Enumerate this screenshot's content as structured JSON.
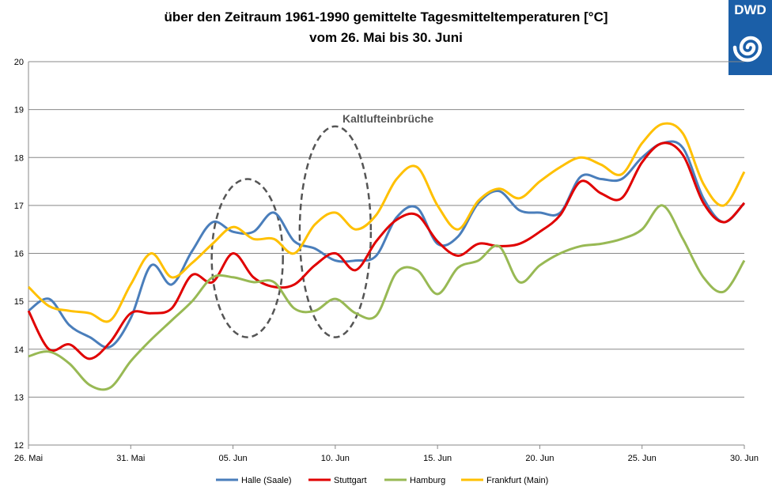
{
  "header": {
    "title_line1": "über den Zeitraum  1961-1990 gemittelte Tagesmitteltemperaturen  [°C]",
    "title_line2": "vom 26. Mai bis 30. Juni",
    "logo_text": "DWD"
  },
  "chart_data": {
    "type": "line",
    "title": "über den Zeitraum  1961-1990 gemittelte Tagesmitteltemperaturen  [°C]",
    "subtitle": "vom 26. Mai bis 30. Juni",
    "ylim": [
      12,
      20
    ],
    "yticks": [
      "12",
      "13",
      "14",
      "15",
      "16",
      "17",
      "18",
      "19",
      "20"
    ],
    "x_tick_labels": [
      "26. Mai",
      "31. Mai",
      "05. Jun",
      "10. Jun",
      "15. Jun",
      "20. Jun",
      "25. Jun",
      "30. Jun"
    ],
    "x": [
      "26. Mai",
      "27. Mai",
      "28. Mai",
      "29. Mai",
      "30. Mai",
      "31. Mai",
      "01. Jun",
      "02. Jun",
      "03. Jun",
      "04. Jun",
      "05. Jun",
      "06. Jun",
      "07. Jun",
      "08. Jun",
      "09. Jun",
      "10. Jun",
      "11. Jun",
      "12. Jun",
      "13. Jun",
      "14. Jun",
      "15. Jun",
      "16. Jun",
      "17. Jun",
      "18. Jun",
      "19. Jun",
      "20. Jun",
      "21. Jun",
      "22. Jun",
      "23. Jun",
      "24. Jun",
      "25. Jun",
      "26. Jun",
      "27. Jun",
      "28. Jun",
      "29. Jun",
      "30. Jun"
    ],
    "grid": "horizontal",
    "legend_position": "bottom",
    "annotation": "Kaltlufteinbrüche",
    "series": [
      {
        "name": "Halle (Saale)",
        "color": "#4a7ebb",
        "values": [
          14.8,
          15.05,
          14.5,
          14.25,
          14.05,
          14.65,
          15.75,
          15.35,
          16.05,
          16.65,
          16.45,
          16.45,
          16.85,
          16.25,
          16.1,
          15.85,
          15.85,
          15.95,
          16.75,
          16.95,
          16.2,
          16.35,
          17.05,
          17.3,
          16.9,
          16.85,
          16.85,
          17.6,
          17.55,
          17.55,
          18.0,
          18.3,
          18.2,
          17.15,
          16.65,
          17.05
        ]
      },
      {
        "name": "Stuttgart",
        "color": "#e00000",
        "values": [
          14.8,
          14.0,
          14.1,
          13.8,
          14.15,
          14.75,
          14.75,
          14.85,
          15.55,
          15.4,
          16.0,
          15.5,
          15.3,
          15.35,
          15.75,
          16.0,
          15.65,
          16.25,
          16.7,
          16.8,
          16.25,
          15.95,
          16.2,
          16.15,
          16.2,
          16.45,
          16.8,
          17.5,
          17.25,
          17.15,
          17.9,
          18.3,
          18.05,
          17.05,
          16.65,
          17.05
        ]
      },
      {
        "name": "Hamburg",
        "color": "#98b954",
        "values": [
          13.85,
          13.95,
          13.7,
          13.25,
          13.2,
          13.75,
          14.2,
          14.6,
          15.0,
          15.5,
          15.5,
          15.4,
          15.4,
          14.85,
          14.8,
          15.05,
          14.75,
          14.7,
          15.6,
          15.65,
          15.15,
          15.7,
          15.85,
          16.15,
          15.4,
          15.75,
          16.0,
          16.15,
          16.2,
          16.3,
          16.5,
          17.0,
          16.3,
          15.5,
          15.2,
          15.85
        ]
      },
      {
        "name": "Frankfurt (Main)",
        "color": "#ffc000",
        "values": [
          15.3,
          14.9,
          14.8,
          14.75,
          14.6,
          15.35,
          16.0,
          15.5,
          15.8,
          16.2,
          16.55,
          16.3,
          16.3,
          16.0,
          16.6,
          16.85,
          16.5,
          16.8,
          17.55,
          17.8,
          17.0,
          16.5,
          17.1,
          17.35,
          17.15,
          17.5,
          17.8,
          18.0,
          17.85,
          17.65,
          18.3,
          18.7,
          18.5,
          17.45,
          17.0,
          17.7
        ]
      }
    ]
  },
  "legend": [
    {
      "label": "Halle (Saale)",
      "color": "#4a7ebb"
    },
    {
      "label": "Stuttgart",
      "color": "#e00000"
    },
    {
      "label": "Hamburg",
      "color": "#98b954"
    },
    {
      "label": "Frankfurt (Main)",
      "color": "#ffc000"
    }
  ]
}
